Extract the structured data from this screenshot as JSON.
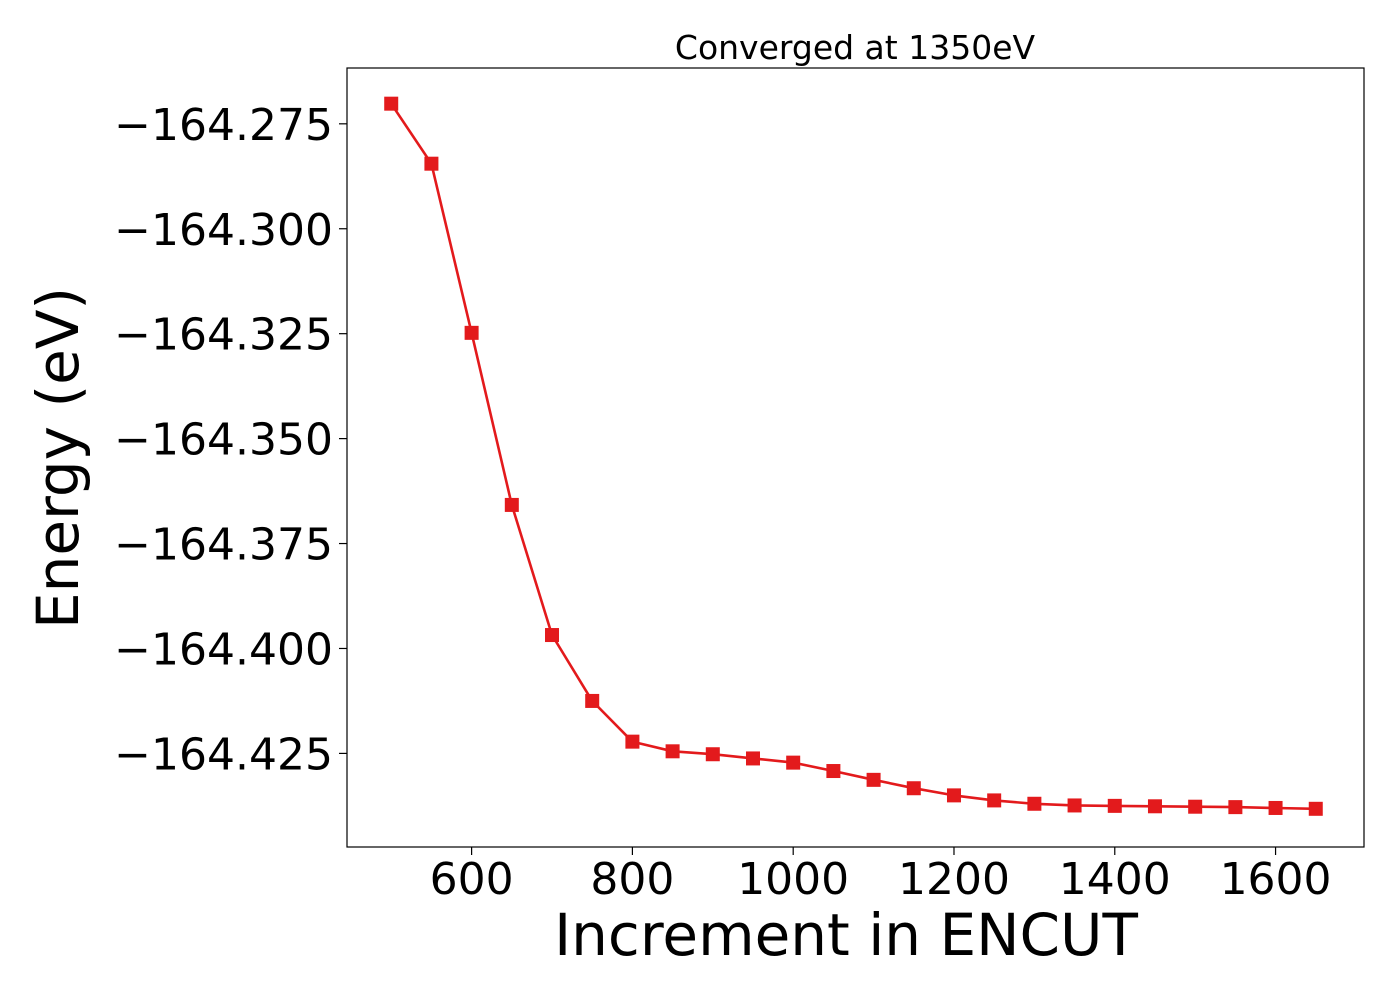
{
  "chart_data": {
    "type": "line",
    "title": "Converged at 1350eV",
    "xlabel": "Increment in ENCUT",
    "ylabel": "Energy (eV)",
    "xlim": [
      445,
      1710
    ],
    "ylim": [
      -164.4473,
      -164.2617
    ],
    "xticks": [
      600,
      800,
      1000,
      1200,
      1400,
      1600
    ],
    "xtick_labels": [
      "600",
      "800",
      "1000",
      "1200",
      "1400",
      "1600"
    ],
    "yticks": [
      -164.275,
      -164.3,
      -164.325,
      -164.35,
      -164.375,
      -164.4,
      -164.425
    ],
    "ytick_labels": [
      "−164.275",
      "−164.300",
      "−164.325",
      "−164.350",
      "−164.375",
      "−164.400",
      "−164.425"
    ],
    "grid": false,
    "series": [
      {
        "color": "#e31a1c",
        "marker": "square",
        "x": [
          500,
          550,
          600,
          650,
          700,
          750,
          800,
          850,
          900,
          950,
          1000,
          1050,
          1100,
          1150,
          1200,
          1250,
          1300,
          1350,
          1400,
          1450,
          1500,
          1550,
          1600,
          1650
        ],
        "y": [
          -164.2702,
          -164.2845,
          -164.3248,
          -164.3658,
          -164.3968,
          -164.4125,
          -164.4222,
          -164.4245,
          -164.4252,
          -164.4262,
          -164.4272,
          -164.4292,
          -164.4313,
          -164.4333,
          -164.435,
          -164.4362,
          -164.437,
          -164.4374,
          -164.4375,
          -164.4376,
          -164.4377,
          -164.4378,
          -164.438,
          -164.4382
        ]
      }
    ]
  }
}
